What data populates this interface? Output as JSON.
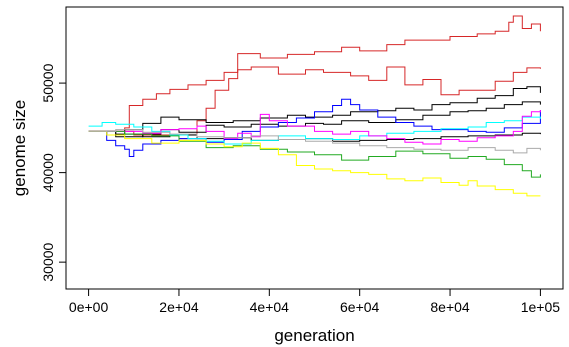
{
  "chart_data": {
    "type": "line",
    "title": "",
    "xlabel": "generation",
    "ylabel": "genome size",
    "xlim": [
      -5000,
      105000
    ],
    "ylim": [
      27000,
      58500
    ],
    "xticks": [
      0,
      20000,
      40000,
      60000,
      80000,
      100000
    ],
    "xtick_labels": [
      "0e+00",
      "2e+04",
      "4e+04",
      "6e+04",
      "8e+04",
      "1e+05"
    ],
    "yticks": [
      30000,
      40000,
      50000
    ],
    "ytick_labels": [
      "30000",
      "40000",
      "50000"
    ],
    "grid": false,
    "legend": "none",
    "series": [
      {
        "color": "#d62728",
        "points": [
          [
            0,
            44600
          ],
          [
            8000,
            45000
          ],
          [
            9000,
            47500
          ],
          [
            12000,
            48200
          ],
          [
            15000,
            48800
          ],
          [
            18000,
            49300
          ],
          [
            22000,
            49800
          ],
          [
            26000,
            50300
          ],
          [
            30000,
            51200
          ],
          [
            33000,
            53300
          ],
          [
            38000,
            52800
          ],
          [
            44000,
            53200
          ],
          [
            50000,
            53500
          ],
          [
            56000,
            54000
          ],
          [
            60000,
            53600
          ],
          [
            66000,
            54300
          ],
          [
            70000,
            54800
          ],
          [
            76000,
            54800
          ],
          [
            80000,
            55200
          ],
          [
            86000,
            55500
          ],
          [
            90000,
            55800
          ],
          [
            93000,
            56800
          ],
          [
            94000,
            57500
          ],
          [
            96000,
            56100
          ],
          [
            98000,
            56600
          ],
          [
            100000,
            55800
          ]
        ]
      },
      {
        "color": "#d62728",
        "points": [
          [
            0,
            44600
          ],
          [
            10000,
            44200
          ],
          [
            20000,
            43800
          ],
          [
            24000,
            45800
          ],
          [
            26000,
            47200
          ],
          [
            28000,
            49200
          ],
          [
            31000,
            50500
          ],
          [
            33000,
            51500
          ],
          [
            36000,
            51800
          ],
          [
            42000,
            51000
          ],
          [
            48000,
            51500
          ],
          [
            52000,
            51200
          ],
          [
            58000,
            50800
          ],
          [
            62000,
            50300
          ],
          [
            66000,
            51800
          ],
          [
            70000,
            49800
          ],
          [
            74000,
            50400
          ],
          [
            78000,
            48700
          ],
          [
            82000,
            49200
          ],
          [
            86000,
            49200
          ],
          [
            90000,
            50200
          ],
          [
            94000,
            51200
          ],
          [
            97000,
            51700
          ],
          [
            100000,
            51600
          ]
        ]
      },
      {
        "color": "#000000",
        "points": [
          [
            0,
            44600
          ],
          [
            4000,
            44200
          ],
          [
            8000,
            44800
          ],
          [
            12000,
            45500
          ],
          [
            16000,
            46200
          ],
          [
            20000,
            45900
          ],
          [
            26000,
            45600
          ],
          [
            32000,
            45800
          ],
          [
            38000,
            46100
          ],
          [
            44000,
            46400
          ],
          [
            48000,
            46200
          ],
          [
            54000,
            46400
          ],
          [
            58000,
            46800
          ],
          [
            64000,
            46900
          ],
          [
            68000,
            47200
          ],
          [
            72000,
            47000
          ],
          [
            76000,
            47600
          ],
          [
            80000,
            47800
          ],
          [
            86000,
            48300
          ],
          [
            90000,
            48600
          ],
          [
            94000,
            49400
          ],
          [
            97000,
            49600
          ],
          [
            100000,
            48900
          ]
        ]
      },
      {
        "color": "#000000",
        "points": [
          [
            0,
            44600
          ],
          [
            6000,
            44000
          ],
          [
            12000,
            44300
          ],
          [
            16000,
            44800
          ],
          [
            20000,
            44500
          ],
          [
            26000,
            45300
          ],
          [
            30000,
            45100
          ],
          [
            36000,
            45400
          ],
          [
            42000,
            45200
          ],
          [
            48000,
            45500
          ],
          [
            52000,
            45400
          ],
          [
            56000,
            45800
          ],
          [
            62000,
            45600
          ],
          [
            68000,
            45900
          ],
          [
            74000,
            46400
          ],
          [
            80000,
            46800
          ],
          [
            84000,
            46900
          ],
          [
            88000,
            47200
          ],
          [
            92000,
            47600
          ],
          [
            96000,
            47900
          ],
          [
            100000,
            47600
          ]
        ]
      },
      {
        "color": "#000000",
        "points": [
          [
            0,
            44600
          ],
          [
            6000,
            44300
          ],
          [
            12000,
            44000
          ],
          [
            18000,
            44200
          ],
          [
            24000,
            43800
          ],
          [
            30000,
            43900
          ],
          [
            36000,
            43600
          ],
          [
            42000,
            43700
          ],
          [
            48000,
            43800
          ],
          [
            54000,
            43500
          ],
          [
            60000,
            43600
          ],
          [
            66000,
            43700
          ],
          [
            72000,
            43800
          ],
          [
            78000,
            44000
          ],
          [
            84000,
            44100
          ],
          [
            90000,
            44200
          ],
          [
            96000,
            44400
          ],
          [
            100000,
            44300
          ]
        ]
      },
      {
        "color": "#0000ff",
        "points": [
          [
            0,
            44600
          ],
          [
            4000,
            43600
          ],
          [
            6000,
            43000
          ],
          [
            8000,
            42600
          ],
          [
            9000,
            41800
          ],
          [
            10000,
            42500
          ],
          [
            12000,
            43200
          ],
          [
            16000,
            43600
          ],
          [
            20000,
            43800
          ],
          [
            26000,
            43400
          ],
          [
            30000,
            43700
          ],
          [
            34000,
            44600
          ],
          [
            38000,
            45100
          ],
          [
            42000,
            45600
          ],
          [
            46000,
            46100
          ],
          [
            50000,
            46800
          ],
          [
            54000,
            47500
          ],
          [
            56000,
            48200
          ],
          [
            58000,
            47600
          ],
          [
            60000,
            47000
          ],
          [
            64000,
            46200
          ],
          [
            68000,
            45600
          ],
          [
            72000,
            45200
          ],
          [
            76000,
            44800
          ],
          [
            80000,
            44800
          ],
          [
            84000,
            44600
          ],
          [
            88000,
            44500
          ],
          [
            92000,
            45000
          ],
          [
            96000,
            45500
          ],
          [
            100000,
            47000
          ]
        ]
      },
      {
        "color": "#00ffff",
        "points": [
          [
            0,
            45200
          ],
          [
            3000,
            45600
          ],
          [
            6000,
            45400
          ],
          [
            10000,
            45100
          ],
          [
            14000,
            44600
          ],
          [
            18000,
            44200
          ],
          [
            22000,
            43800
          ],
          [
            26000,
            43500
          ],
          [
            30000,
            43200
          ],
          [
            36000,
            43600
          ],
          [
            42000,
            44100
          ],
          [
            48000,
            43800
          ],
          [
            54000,
            43700
          ],
          [
            60000,
            44100
          ],
          [
            66000,
            44400
          ],
          [
            72000,
            44600
          ],
          [
            78000,
            44900
          ],
          [
            84000,
            45100
          ],
          [
            88000,
            45600
          ],
          [
            92000,
            45800
          ],
          [
            96000,
            46200
          ],
          [
            100000,
            46000
          ]
        ]
      },
      {
        "color": "#ff00ff",
        "points": [
          [
            0,
            44600
          ],
          [
            6000,
            44600
          ],
          [
            12000,
            44400
          ],
          [
            16000,
            44800
          ],
          [
            20000,
            44900
          ],
          [
            24000,
            45200
          ],
          [
            26000,
            44600
          ],
          [
            30000,
            43800
          ],
          [
            33000,
            44400
          ],
          [
            36000,
            44000
          ],
          [
            38000,
            46500
          ],
          [
            40000,
            45800
          ],
          [
            44000,
            45200
          ],
          [
            50000,
            44600
          ],
          [
            54000,
            44300
          ],
          [
            58000,
            44600
          ],
          [
            62000,
            44100
          ],
          [
            66000,
            43800
          ],
          [
            70000,
            43400
          ],
          [
            74000,
            43200
          ],
          [
            78000,
            43700
          ],
          [
            82000,
            43500
          ],
          [
            86000,
            43900
          ],
          [
            90000,
            44100
          ],
          [
            94000,
            44600
          ],
          [
            96000,
            46300
          ],
          [
            98000,
            46800
          ],
          [
            100000,
            47000
          ]
        ]
      },
      {
        "color": "#22aa22",
        "points": [
          [
            0,
            44600
          ],
          [
            8000,
            44300
          ],
          [
            14000,
            44100
          ],
          [
            20000,
            43500
          ],
          [
            26000,
            42800
          ],
          [
            32000,
            43000
          ],
          [
            38000,
            42600
          ],
          [
            44000,
            42300
          ],
          [
            50000,
            42000
          ],
          [
            56000,
            41400
          ],
          [
            62000,
            41800
          ],
          [
            68000,
            42400
          ],
          [
            74000,
            42100
          ],
          [
            80000,
            41600
          ],
          [
            84000,
            41800
          ],
          [
            88000,
            41500
          ],
          [
            92000,
            40900
          ],
          [
            96000,
            40200
          ],
          [
            98000,
            39500
          ],
          [
            100000,
            39800
          ]
        ]
      },
      {
        "color": "#ffff00",
        "points": [
          [
            0,
            44600
          ],
          [
            4000,
            44200
          ],
          [
            8000,
            43800
          ],
          [
            14000,
            43300
          ],
          [
            20000,
            43600
          ],
          [
            26000,
            43200
          ],
          [
            30000,
            42900
          ],
          [
            34000,
            43300
          ],
          [
            38000,
            42700
          ],
          [
            42000,
            42000
          ],
          [
            46000,
            40800
          ],
          [
            50000,
            40400
          ],
          [
            54000,
            40200
          ],
          [
            58000,
            40000
          ],
          [
            62000,
            39800
          ],
          [
            66000,
            39300
          ],
          [
            70000,
            39100
          ],
          [
            74000,
            39400
          ],
          [
            78000,
            38900
          ],
          [
            82000,
            38600
          ],
          [
            84000,
            39100
          ],
          [
            86000,
            38500
          ],
          [
            90000,
            38100
          ],
          [
            94000,
            37700
          ],
          [
            97000,
            37400
          ],
          [
            100000,
            37400
          ]
        ]
      },
      {
        "color": "#aaaaaa",
        "points": [
          [
            0,
            44600
          ],
          [
            6000,
            44800
          ],
          [
            12000,
            44500
          ],
          [
            18000,
            44300
          ],
          [
            24000,
            44000
          ],
          [
            30000,
            43900
          ],
          [
            36000,
            44100
          ],
          [
            42000,
            43700
          ],
          [
            48000,
            43500
          ],
          [
            54000,
            43300
          ],
          [
            60000,
            43000
          ],
          [
            66000,
            42800
          ],
          [
            72000,
            42600
          ],
          [
            78000,
            42500
          ],
          [
            84000,
            42800
          ],
          [
            90000,
            42500
          ],
          [
            94000,
            42200
          ],
          [
            97000,
            42700
          ],
          [
            100000,
            42500
          ]
        ]
      }
    ]
  }
}
